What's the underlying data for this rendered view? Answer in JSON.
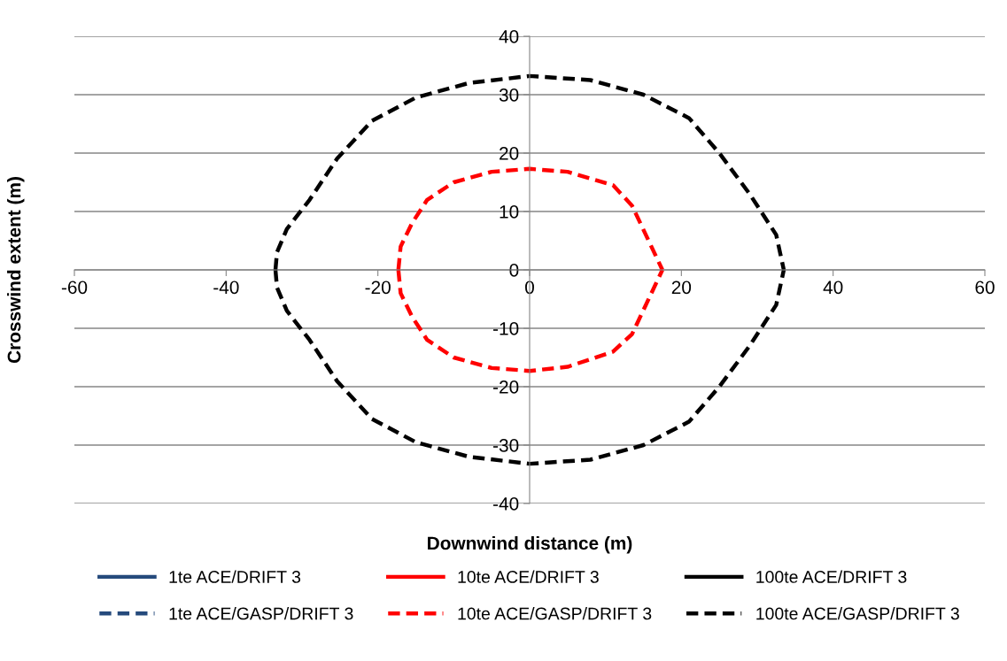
{
  "chart_data": {
    "type": "line",
    "xlabel": "Downwind distance (m)",
    "ylabel": "Crosswind extent (m)",
    "xlim": [
      -60,
      60
    ],
    "xticks": [
      -60,
      -40,
      -20,
      0,
      20,
      40,
      60
    ],
    "ylim": [
      -40,
      40
    ],
    "yticks": [
      -40,
      -30,
      -20,
      -10,
      0,
      10,
      20,
      30,
      40
    ],
    "grid": "y",
    "legend": "bottom",
    "marker": "none",
    "series": [
      {
        "name": "1te ACE/DRIFT 3",
        "color": "#254a7c",
        "line_style": "solid"
      },
      {
        "name": "1te ACE/GASP/DRIFT 3",
        "color": "#254a7c",
        "line_style": "dashed"
      },
      {
        "name": "10te ACE/DRIFT 3",
        "color": "#ff0000",
        "line_style": "solid"
      },
      {
        "name": "10te ACE/GASP/DRIFT 3",
        "color": "#ff0000",
        "line_style": "dashed",
        "x": [
          -17.3,
          -17,
          -15.5,
          -13.5,
          -10,
          -5,
          0,
          5,
          11,
          13.5,
          17.5,
          null,
          -17.3,
          -17,
          -15.5,
          -13.5,
          -10,
          -5,
          0,
          5,
          11,
          13.5,
          17.5
        ],
        "values": [
          0,
          4,
          8,
          12,
          15,
          16.8,
          17.3,
          16.8,
          14.5,
          11,
          0,
          null,
          0,
          -4,
          -8,
          -12,
          -15,
          -16.8,
          -17.3,
          -16.6,
          -14,
          -11,
          0
        ]
      },
      {
        "name": "100te ACE/DRIFT 3",
        "color": "#000000",
        "line_style": "solid"
      },
      {
        "name": "100te ACE/GASP/DRIFT 3",
        "color": "#000000",
        "line_style": "dashed",
        "x": [
          -33.5,
          -33.3,
          -32,
          -29,
          -25.4,
          -20.8,
          -15,
          -8,
          0,
          8,
          15,
          21,
          25,
          29,
          32.5,
          33.5,
          null,
          -33.5,
          -33.3,
          -32,
          -29,
          -25.4,
          -20.8,
          -15,
          -8,
          0,
          8,
          15,
          21,
          25,
          29,
          32.5,
          33.5
        ],
        "values": [
          0,
          3,
          7,
          12,
          19,
          25.5,
          29.5,
          32,
          33.2,
          32.5,
          30,
          26,
          20,
          13,
          6,
          0,
          null,
          0,
          -3,
          -7,
          -12,
          -19,
          -25.5,
          -29.5,
          -32,
          -33.2,
          -32.5,
          -30,
          -26,
          -20,
          -13,
          -6,
          0
        ]
      }
    ]
  }
}
